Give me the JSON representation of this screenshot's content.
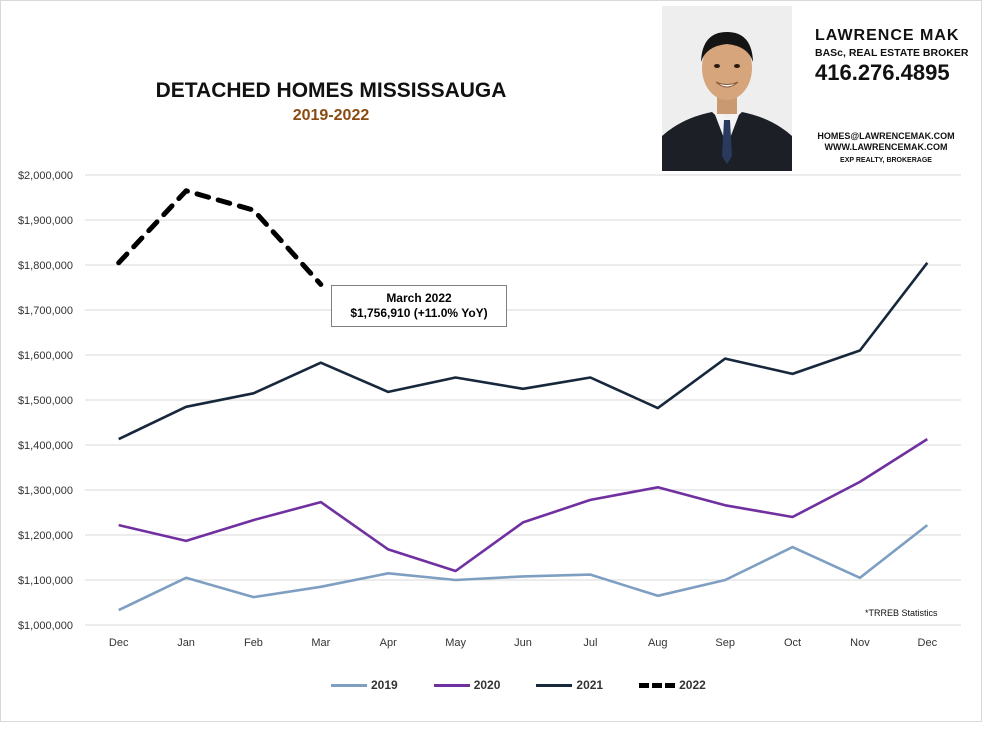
{
  "header": {
    "title": "DETACHED HOMES MISSISSAUGA",
    "subtitle": "2019-2022"
  },
  "agent": {
    "name": "LAWRENCE MAK",
    "credentials": "BASc, REAL ESTATE BROKER",
    "phone": "416.276.4895",
    "email": "HOMES@LAWRENCEMAK.COM",
    "website": "WWW.LAWRENCEMAK.COM",
    "brokerage": "EXP REALTY, BROKERAGE"
  },
  "callout": {
    "line1": "March 2022",
    "line2": "$1,756,910  (+11.0%  YoY)"
  },
  "source_note": "*TRREB Statistics",
  "colors": {
    "s2019": "#7f9fc2",
    "s2020": "#7030a0",
    "s2021": "#17283d",
    "s2022": "#000000",
    "grid": "#d9d9d9",
    "subtitle": "#8a4a10"
  },
  "chart_data": {
    "type": "line",
    "categories": [
      "Dec",
      "Jan",
      "Feb",
      "Mar",
      "Apr",
      "May",
      "Jun",
      "Jul",
      "Aug",
      "Sep",
      "Oct",
      "Nov",
      "Dec"
    ],
    "y_ticks": [
      "$1,000,000",
      "$1,100,000",
      "$1,200,000",
      "$1,300,000",
      "$1,400,000",
      "$1,500,000",
      "$1,600,000",
      "$1,700,000",
      "$1,800,000",
      "$1,900,000",
      "$2,000,000"
    ],
    "ylim": [
      1000000,
      2000000
    ],
    "grid": true,
    "legend_position": "bottom",
    "series": [
      {
        "name": "2019",
        "color": "#7f9fc2",
        "dashed": false,
        "values": [
          1033000,
          1105000,
          1062000,
          1085000,
          1115000,
          1100000,
          1108000,
          1112000,
          1065000,
          1100000,
          1173000,
          1105000,
          1222000
        ]
      },
      {
        "name": "2020",
        "color": "#7030a0",
        "dashed": false,
        "values": [
          1222000,
          1187000,
          1233000,
          1273000,
          1168000,
          1120000,
          1228000,
          1278000,
          1306000,
          1266000,
          1240000,
          1318000,
          1413000
        ]
      },
      {
        "name": "2021",
        "color": "#17283d",
        "dashed": false,
        "values": [
          1413000,
          1485000,
          1515000,
          1583000,
          1518000,
          1550000,
          1525000,
          1550000,
          1482000,
          1592000,
          1558000,
          1610000,
          1805000
        ]
      },
      {
        "name": "2022",
        "color": "#000000",
        "dashed": true,
        "values": [
          1805000,
          1965000,
          1922000,
          1756910,
          null,
          null,
          null,
          null,
          null,
          null,
          null,
          null,
          null
        ]
      }
    ]
  }
}
